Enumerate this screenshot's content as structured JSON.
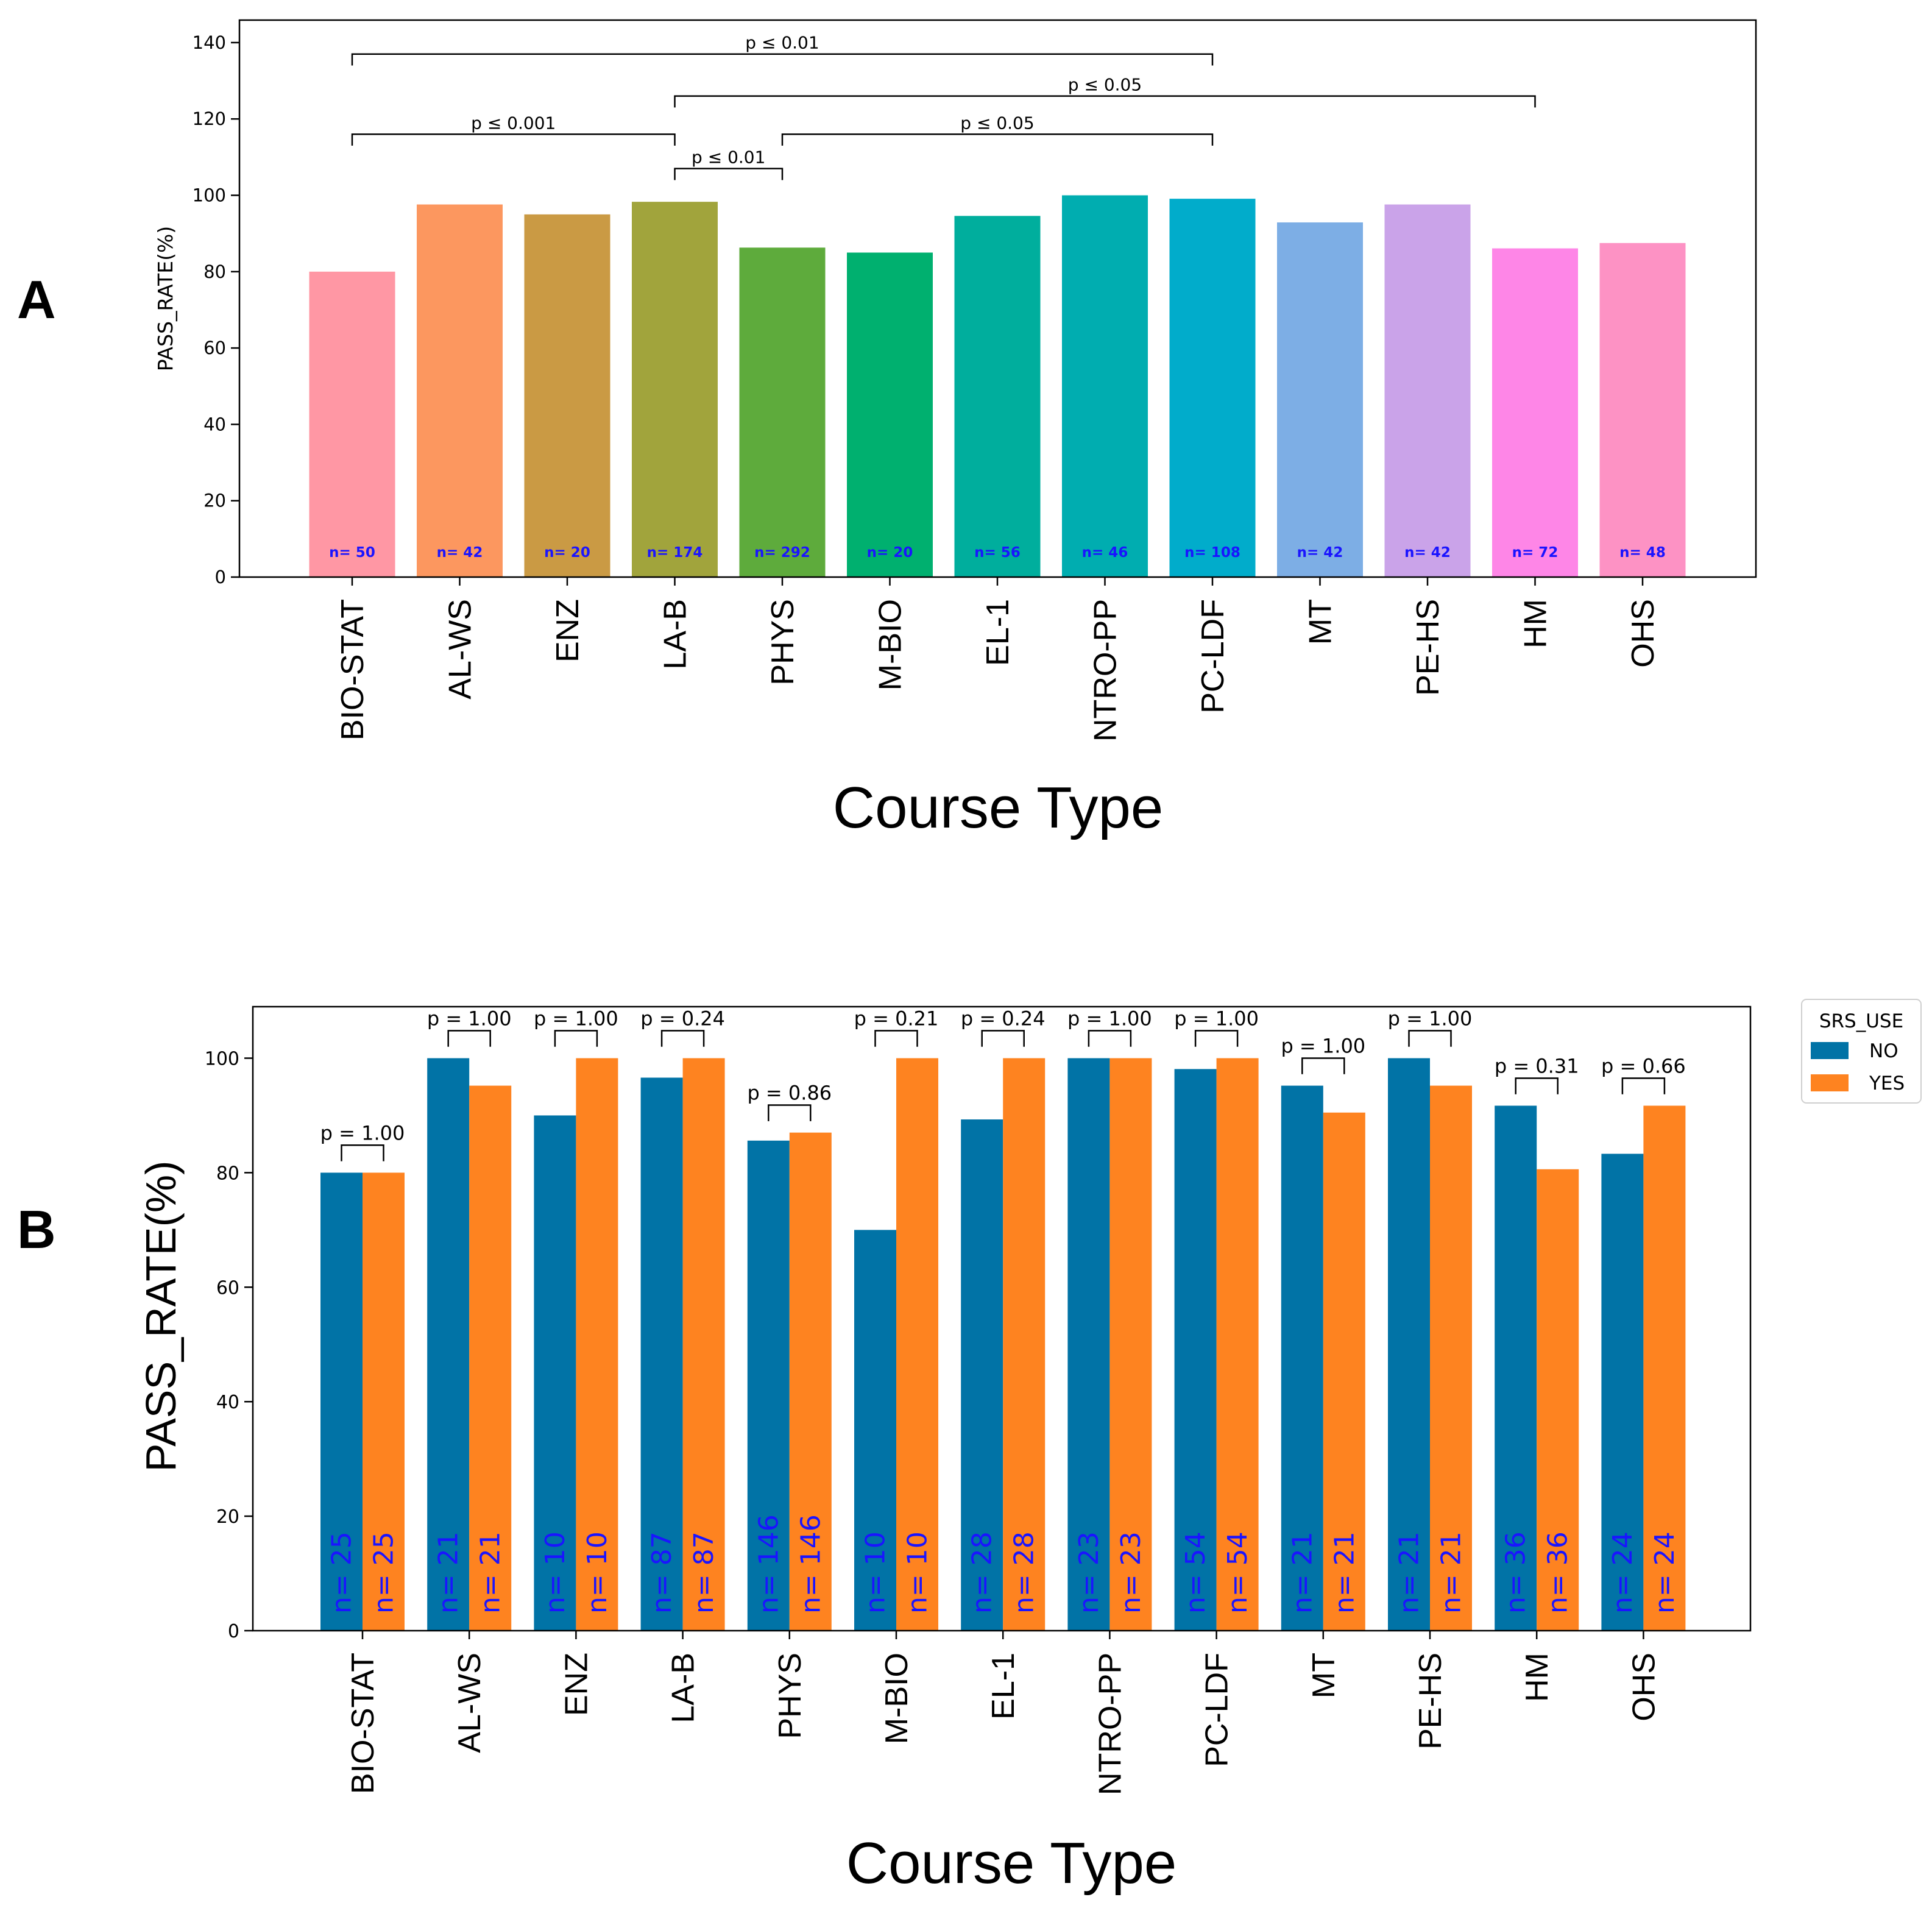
{
  "chart_data": [
    {
      "panel_label": "A",
      "type": "bar",
      "xlabel": "Course Type",
      "ylabel": "PASS_RATE(%)",
      "ylim": [
        0,
        146
      ],
      "yticks": [
        0,
        20,
        40,
        60,
        80,
        100,
        120,
        140
      ],
      "categories": [
        "BIO-STAT",
        "AL-WS",
        "ENZ",
        "LA-B",
        "PHYS",
        "M-BIO",
        "EL-1",
        "NTRO-PP",
        "PC-LDF",
        "MT",
        "PE-HS",
        "HM",
        "OHS"
      ],
      "values": [
        80,
        97.6,
        95,
        98.3,
        86.3,
        85,
        94.6,
        100,
        99.1,
        92.9,
        97.6,
        86.1,
        87.5
      ],
      "colors": [
        "#ff97a4",
        "#fc975f",
        "#ca9a44",
        "#a1a43c",
        "#5eab3c",
        "#00b06f",
        "#00ae9d",
        "#00adb0",
        "#01accb",
        "#7daee5",
        "#caa3e9",
        "#fe86e7",
        "#fd92c4"
      ],
      "n_labels": [
        "n= 50",
        "n= 42",
        "n= 20",
        "n= 174",
        "n= 292",
        "n= 20",
        "n= 56",
        "n= 46",
        "n= 108",
        "n= 42",
        "n= 42",
        "n= 72",
        "n= 48"
      ],
      "brackets": [
        {
          "from": 0,
          "to": 8,
          "y": 137,
          "drop": 3,
          "label": "p ≤ 0.01"
        },
        {
          "from": 3,
          "to": 11,
          "y": 126,
          "drop": 3,
          "label": "p ≤ 0.05"
        },
        {
          "from": 0,
          "to": 3,
          "y": 116,
          "drop": 3,
          "label": "p ≤ 0.001"
        },
        {
          "from": 4,
          "to": 8,
          "y": 116,
          "drop": 3,
          "label": "p ≤ 0.05"
        },
        {
          "from": 3,
          "to": 4,
          "y": 107,
          "drop": 3,
          "label": "p ≤ 0.01"
        }
      ]
    },
    {
      "panel_label": "B",
      "type": "bar",
      "xlabel": "Course Type",
      "ylabel": "PASS_RATE(%)",
      "ylim": [
        0,
        109
      ],
      "yticks": [
        0,
        20,
        40,
        60,
        80,
        100
      ],
      "categories": [
        "BIO-STAT",
        "AL-WS",
        "ENZ",
        "LA-B",
        "PHYS",
        "M-BIO",
        "EL-1",
        "NTRO-PP",
        "PC-LDF",
        "MT",
        "PE-HS",
        "HM",
        "OHS"
      ],
      "legend_title": "SRS_USE",
      "series": [
        {
          "name": "NO",
          "color": "#0173a6",
          "values": [
            80,
            100,
            90,
            96.6,
            85.6,
            70,
            89.3,
            100,
            98.1,
            95.2,
            100,
            91.7,
            83.3
          ],
          "n_labels": [
            "n= 25",
            "n= 21",
            "n= 10",
            "n= 87",
            "n= 146",
            "n= 10",
            "n= 28",
            "n= 23",
            "n= 54",
            "n= 21",
            "n= 21",
            "n= 36",
            "n= 24"
          ]
        },
        {
          "name": "YES",
          "color": "#fe8320",
          "values": [
            80,
            95.2,
            100,
            100,
            87,
            100,
            100,
            100,
            100,
            90.5,
            95.2,
            80.6,
            91.7
          ],
          "n_labels": [
            "n= 25",
            "n= 21",
            "n= 10",
            "n= 87",
            "n= 146",
            "n= 10",
            "n= 28",
            "n= 23",
            "n= 54",
            "n= 21",
            "n= 21",
            "n= 36",
            "n= 24"
          ]
        }
      ],
      "p_values": [
        "p = 1.00",
        "p = 1.00",
        "p = 1.00",
        "p = 0.24",
        "p = 0.86",
        "p = 0.21",
        "p = 0.24",
        "p = 1.00",
        "p = 1.00",
        "p = 1.00",
        "p = 1.00",
        "p = 0.31",
        "p = 0.66"
      ]
    }
  ]
}
